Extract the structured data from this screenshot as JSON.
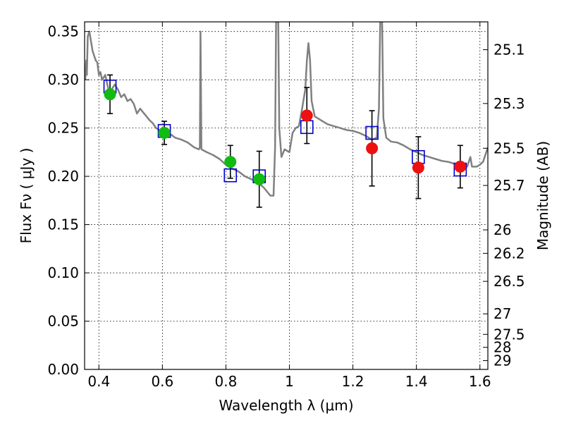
{
  "chart_data": {
    "type": "scatter",
    "title": "",
    "xlabel": "Wavelength  λ (μm)",
    "ylabel": "Flux  Fν  ( μJy )",
    "y2label": "Magnitude (AB)",
    "xlim": [
      0.355,
      1.625
    ],
    "ylim": [
      0.0,
      0.36
    ],
    "grid": true,
    "xticks": [
      {
        "v": 0.4,
        "label": "0.4"
      },
      {
        "v": 0.6,
        "label": "0.6"
      },
      {
        "v": 0.8,
        "label": "0.8"
      },
      {
        "v": 1.0,
        "label": "1"
      },
      {
        "v": 1.2,
        "label": "1.2"
      },
      {
        "v": 1.4,
        "label": "1.4"
      },
      {
        "v": 1.6,
        "label": "1.6"
      }
    ],
    "yticks": [
      {
        "v": 0.0,
        "label": "0.00"
      },
      {
        "v": 0.05,
        "label": "0.05"
      },
      {
        "v": 0.1,
        "label": "0.10"
      },
      {
        "v": 0.15,
        "label": "0.15"
      },
      {
        "v": 0.2,
        "label": "0.20"
      },
      {
        "v": 0.25,
        "label": "0.25"
      },
      {
        "v": 0.3,
        "label": "0.30"
      },
      {
        "v": 0.35,
        "label": "0.35"
      }
    ],
    "y2ticks": [
      {
        "mag": 25.1,
        "label": "25.1"
      },
      {
        "mag": 25.3,
        "label": "25.3"
      },
      {
        "mag": 25.5,
        "label": "25.5"
      },
      {
        "mag": 25.7,
        "label": "25.7"
      },
      {
        "mag": 26.0,
        "label": "26"
      },
      {
        "mag": 26.2,
        "label": "26.2"
      },
      {
        "mag": 26.5,
        "label": "26.5"
      },
      {
        "mag": 27.0,
        "label": "27"
      },
      {
        "mag": 27.5,
        "label": "27.5"
      },
      {
        "mag": 28.0,
        "label": "28"
      },
      {
        "mag": 29.0,
        "label": "29"
      }
    ],
    "template_spectrum": {
      "color": "#808080",
      "points": [
        [
          0.357,
          0.3
        ],
        [
          0.36,
          0.32
        ],
        [
          0.362,
          0.305
        ],
        [
          0.365,
          0.345
        ],
        [
          0.37,
          0.35
        ],
        [
          0.375,
          0.34
        ],
        [
          0.38,
          0.33
        ],
        [
          0.385,
          0.325
        ],
        [
          0.39,
          0.32
        ],
        [
          0.395,
          0.318
        ],
        [
          0.4,
          0.305
        ],
        [
          0.405,
          0.308
        ],
        [
          0.41,
          0.3
        ],
        [
          0.42,
          0.305
        ],
        [
          0.43,
          0.29
        ],
        [
          0.44,
          0.29
        ],
        [
          0.45,
          0.295
        ],
        [
          0.46,
          0.29
        ],
        [
          0.47,
          0.282
        ],
        [
          0.48,
          0.285
        ],
        [
          0.49,
          0.278
        ],
        [
          0.5,
          0.28
        ],
        [
          0.51,
          0.275
        ],
        [
          0.52,
          0.265
        ],
        [
          0.53,
          0.27
        ],
        [
          0.54,
          0.266
        ],
        [
          0.55,
          0.262
        ],
        [
          0.56,
          0.258
        ],
        [
          0.57,
          0.255
        ],
        [
          0.58,
          0.25
        ],
        [
          0.59,
          0.248
        ],
        [
          0.6,
          0.245
        ],
        [
          0.62,
          0.245
        ],
        [
          0.64,
          0.24
        ],
        [
          0.66,
          0.238
        ],
        [
          0.68,
          0.235
        ],
        [
          0.7,
          0.23
        ],
        [
          0.715,
          0.228
        ],
        [
          0.718,
          0.23
        ],
        [
          0.72,
          0.35
        ],
        [
          0.723,
          0.228
        ],
        [
          0.74,
          0.225
        ],
        [
          0.76,
          0.222
        ],
        [
          0.78,
          0.218
        ],
        [
          0.8,
          0.212
        ],
        [
          0.82,
          0.208
        ],
        [
          0.84,
          0.205
        ],
        [
          0.86,
          0.2
        ],
        [
          0.88,
          0.197
        ],
        [
          0.9,
          0.194
        ],
        [
          0.92,
          0.188
        ],
        [
          0.94,
          0.18
        ],
        [
          0.95,
          0.18
        ],
        [
          0.955,
          0.23
        ],
        [
          0.958,
          0.36
        ],
        [
          0.965,
          0.36
        ],
        [
          0.968,
          0.25
        ],
        [
          0.975,
          0.22
        ],
        [
          0.985,
          0.228
        ],
        [
          1.0,
          0.225
        ],
        [
          1.01,
          0.245
        ],
        [
          1.02,
          0.25
        ],
        [
          1.03,
          0.252
        ],
        [
          1.04,
          0.27
        ],
        [
          1.05,
          0.29
        ],
        [
          1.055,
          0.32
        ],
        [
          1.06,
          0.338
        ],
        [
          1.065,
          0.32
        ],
        [
          1.07,
          0.278
        ],
        [
          1.08,
          0.262
        ],
        [
          1.1,
          0.258
        ],
        [
          1.12,
          0.254
        ],
        [
          1.14,
          0.252
        ],
        [
          1.16,
          0.25
        ],
        [
          1.18,
          0.248
        ],
        [
          1.2,
          0.247
        ],
        [
          1.22,
          0.245
        ],
        [
          1.24,
          0.242
        ],
        [
          1.26,
          0.238
        ],
        [
          1.275,
          0.24
        ],
        [
          1.282,
          0.27
        ],
        [
          1.286,
          0.36
        ],
        [
          1.292,
          0.36
        ],
        [
          1.296,
          0.26
        ],
        [
          1.305,
          0.24
        ],
        [
          1.32,
          0.236
        ],
        [
          1.34,
          0.235
        ],
        [
          1.36,
          0.232
        ],
        [
          1.38,
          0.228
        ],
        [
          1.4,
          0.225
        ],
        [
          1.42,
          0.222
        ],
        [
          1.44,
          0.22
        ],
        [
          1.46,
          0.218
        ],
        [
          1.48,
          0.216
        ],
        [
          1.5,
          0.215
        ],
        [
          1.52,
          0.213
        ],
        [
          1.54,
          0.21
        ],
        [
          1.56,
          0.21
        ],
        [
          1.57,
          0.22
        ],
        [
          1.575,
          0.21
        ],
        [
          1.59,
          0.21
        ],
        [
          1.6,
          0.212
        ],
        [
          1.61,
          0.215
        ],
        [
          1.625,
          0.23
        ]
      ]
    },
    "series": [
      {
        "marker": "open-square",
        "color": "#0000cc",
        "points": [
          {
            "x": 0.435,
            "y": 0.293
          },
          {
            "x": 0.606,
            "y": 0.247
          },
          {
            "x": 0.814,
            "y": 0.201
          },
          {
            "x": 0.905,
            "y": 0.2
          },
          {
            "x": 1.055,
            "y": 0.251
          },
          {
            "x": 1.26,
            "y": 0.245
          },
          {
            "x": 1.406,
            "y": 0.22
          },
          {
            "x": 1.538,
            "y": 0.207
          }
        ]
      },
      {
        "marker": "filled-circle",
        "color": "#11bb11",
        "points": [
          {
            "x": 0.435,
            "y": 0.285,
            "err": 0.02
          },
          {
            "x": 0.606,
            "y": 0.245,
            "err": 0.012
          },
          {
            "x": 0.814,
            "y": 0.215,
            "err": 0.017
          },
          {
            "x": 0.905,
            "y": 0.197,
            "err": 0.029
          }
        ]
      },
      {
        "marker": "filled-circle",
        "color": "#ee1111",
        "points": [
          {
            "x": 1.055,
            "y": 0.263,
            "err": 0.029
          },
          {
            "x": 1.26,
            "y": 0.229,
            "err": 0.039
          },
          {
            "x": 1.406,
            "y": 0.209,
            "err": 0.032
          },
          {
            "x": 1.538,
            "y": 0.21,
            "err": 0.022
          }
        ]
      }
    ]
  }
}
